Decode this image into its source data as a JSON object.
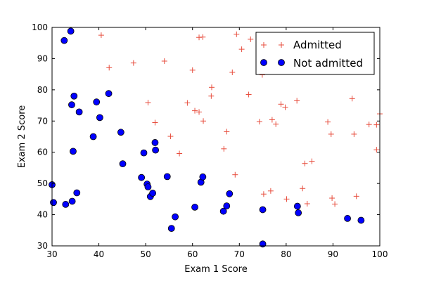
{
  "chart_data": {
    "type": "scatter",
    "xlabel": "Exam 1 Score",
    "ylabel": "Exam 2 Score",
    "xlim": [
      30,
      100
    ],
    "ylim": [
      30,
      100
    ],
    "xticks": [
      30,
      40,
      50,
      60,
      70,
      80,
      90,
      100
    ],
    "yticks": [
      30,
      40,
      50,
      60,
      70,
      80,
      90,
      100
    ],
    "grid": false,
    "legend_position": "top-right",
    "series": [
      {
        "name": "Admitted",
        "marker": "plus",
        "color": "#e74c3c",
        "points": [
          [
            40.5,
            97.5
          ],
          [
            42.2,
            87.1
          ],
          [
            47.4,
            88.6
          ],
          [
            50.5,
            75.9
          ],
          [
            52.0,
            69.5
          ],
          [
            54.0,
            89.2
          ],
          [
            55.3,
            65.1
          ],
          [
            57.2,
            59.6
          ],
          [
            58.9,
            75.8
          ],
          [
            60.0,
            86.3
          ],
          [
            60.5,
            73.3
          ],
          [
            61.4,
            72.9
          ],
          [
            61.4,
            96.8
          ],
          [
            62.2,
            96.9
          ],
          [
            62.3,
            70.0
          ],
          [
            64.0,
            78.0
          ],
          [
            64.1,
            80.8
          ],
          [
            66.7,
            61.1
          ],
          [
            67.3,
            66.6
          ],
          [
            68.5,
            85.6
          ],
          [
            69.1,
            52.8
          ],
          [
            69.4,
            97.8
          ],
          [
            70.5,
            93.0
          ],
          [
            72.0,
            78.5
          ],
          [
            72.4,
            96.2
          ],
          [
            74.3,
            69.8
          ],
          [
            74.9,
            84.8
          ],
          [
            75.2,
            46.6
          ],
          [
            76.7,
            47.6
          ],
          [
            77.0,
            70.4
          ],
          [
            77.8,
            69.0
          ],
          [
            78.9,
            75.4
          ],
          [
            79.8,
            74.4
          ],
          [
            80.1,
            45.0
          ],
          [
            82.3,
            76.5
          ],
          [
            83.5,
            48.4
          ],
          [
            84.0,
            56.4
          ],
          [
            84.5,
            43.5
          ],
          [
            85.5,
            57.1
          ],
          [
            88.9,
            69.7
          ],
          [
            89.6,
            65.8
          ],
          [
            89.8,
            45.3
          ],
          [
            90.4,
            43.4
          ],
          [
            94.1,
            77.2
          ],
          [
            94.5,
            65.8
          ],
          [
            95.0,
            45.9
          ],
          [
            97.7,
            68.9
          ],
          [
            99.3,
            68.8
          ],
          [
            99.3,
            60.8
          ],
          [
            100.0,
            72.3
          ]
        ]
      },
      {
        "name": "Not admitted",
        "marker": "circle",
        "color": "#0000ff",
        "points": [
          [
            30.0,
            49.6
          ],
          [
            30.3,
            43.9
          ],
          [
            32.6,
            95.8
          ],
          [
            32.9,
            43.3
          ],
          [
            34.0,
            98.8
          ],
          [
            34.2,
            75.2
          ],
          [
            34.3,
            44.3
          ],
          [
            34.5,
            60.3
          ],
          [
            34.7,
            78.0
          ],
          [
            35.3,
            47.0
          ],
          [
            35.8,
            72.9
          ],
          [
            38.8,
            65.0
          ],
          [
            39.5,
            76.1
          ],
          [
            40.2,
            71.1
          ],
          [
            42.1,
            78.8
          ],
          [
            44.7,
            66.4
          ],
          [
            45.1,
            56.3
          ],
          [
            49.1,
            51.9
          ],
          [
            49.6,
            59.8
          ],
          [
            50.3,
            49.8
          ],
          [
            50.5,
            48.9
          ],
          [
            51.0,
            45.8
          ],
          [
            51.5,
            46.9
          ],
          [
            52.0,
            63.1
          ],
          [
            52.1,
            60.7
          ],
          [
            54.6,
            52.2
          ],
          [
            55.5,
            35.6
          ],
          [
            56.3,
            39.3
          ],
          [
            60.5,
            42.4
          ],
          [
            61.8,
            50.4
          ],
          [
            62.2,
            52.1
          ],
          [
            66.6,
            41.1
          ],
          [
            67.3,
            42.8
          ],
          [
            67.9,
            46.7
          ],
          [
            75.0,
            41.6
          ],
          [
            75.0,
            30.6
          ],
          [
            82.4,
            42.7
          ],
          [
            82.6,
            40.6
          ],
          [
            93.1,
            38.8
          ],
          [
            96.0,
            38.2
          ]
        ]
      }
    ]
  }
}
